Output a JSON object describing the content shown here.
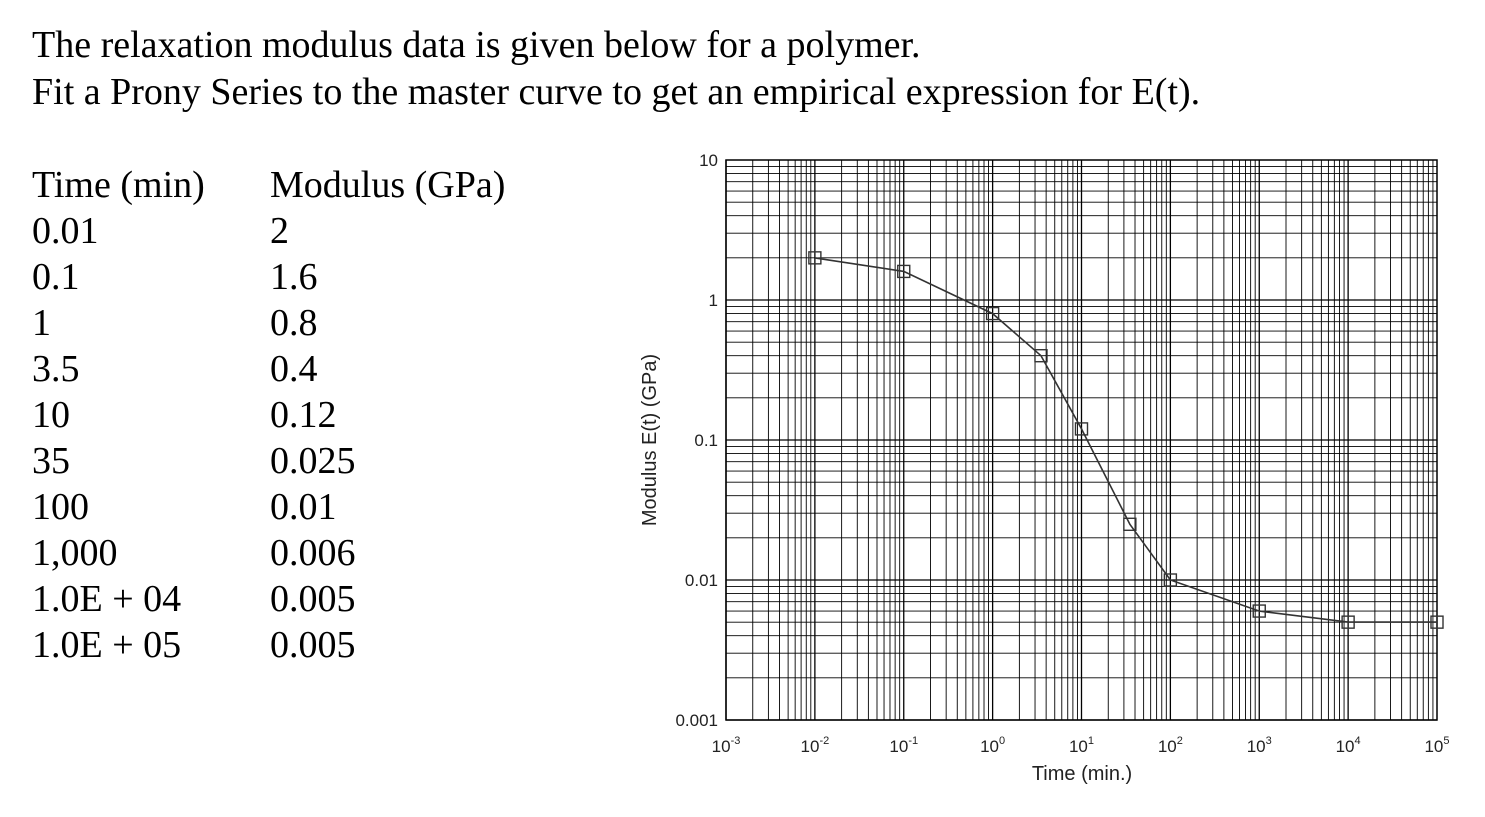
{
  "problem": {
    "line1": "The relaxation modulus data is given below for a polymer.",
    "line2": "Fit a Prony Series to the master curve to get an empirical expression for E(t)."
  },
  "table": {
    "headers": [
      "Time (min)",
      "Modulus (GPa)"
    ],
    "rows": [
      [
        "0.01",
        "2"
      ],
      [
        "0.1",
        "1.6"
      ],
      [
        "1",
        "0.8"
      ],
      [
        "3.5",
        "0.4"
      ],
      [
        "10",
        "0.12"
      ],
      [
        "35",
        "0.025"
      ],
      [
        "100",
        "0.01"
      ],
      [
        "1,000",
        "0.006"
      ],
      [
        "1.0E + 04",
        "0.005"
      ],
      [
        "1.0E + 05",
        "0.005"
      ]
    ]
  },
  "chart_data": {
    "type": "line",
    "title": "",
    "xlabel": "Time (min.)",
    "ylabel": "Modulus E(t) (GPa)",
    "xscale": "log",
    "yscale": "log",
    "xlim": [
      0.001,
      100000
    ],
    "ylim": [
      0.001,
      10
    ],
    "x_tick_exponents": [
      "-3",
      "-2",
      "-1",
      "0",
      "1",
      "2",
      "3",
      "4",
      "5"
    ],
    "y_tick_labels": [
      "10",
      "1",
      "0.1",
      "0.01",
      "0.001"
    ],
    "marker": "square",
    "grid": true,
    "series": [
      {
        "name": "E(t)",
        "x": [
          0.01,
          0.1,
          1,
          3.5,
          10,
          35,
          100,
          1000,
          10000,
          100000
        ],
        "y": [
          2,
          1.6,
          0.8,
          0.4,
          0.12,
          0.025,
          0.01,
          0.006,
          0.005,
          0.005
        ]
      }
    ]
  },
  "colors": {
    "grid": "#000000",
    "line": "#333333",
    "text": "#222222"
  }
}
